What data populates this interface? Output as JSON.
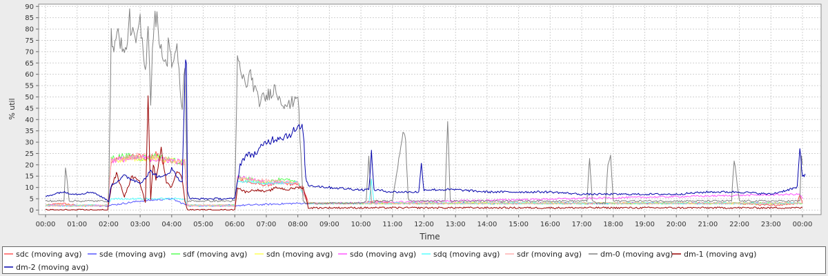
{
  "chart_data": {
    "type": "line",
    "title": "",
    "xlabel": "Time",
    "ylabel": "% util",
    "xlim": [
      "00:00",
      "24:20"
    ],
    "ylim": [
      -2,
      91
    ],
    "grid": true,
    "legend_position": "bottom",
    "x_ticks": [
      "00:00",
      "01:00",
      "02:00",
      "03:00",
      "04:00",
      "05:00",
      "06:00",
      "07:00",
      "08:00",
      "09:00",
      "10:00",
      "11:00",
      "12:00",
      "13:00",
      "14:00",
      "15:00",
      "16:00",
      "17:00",
      "18:00",
      "19:00",
      "20:00",
      "21:00",
      "22:00",
      "23:00",
      "00:00"
    ],
    "y_ticks": [
      0,
      5,
      10,
      15,
      20,
      25,
      30,
      35,
      40,
      45,
      50,
      55,
      60,
      65,
      70,
      75,
      80,
      85,
      90
    ],
    "series": [
      {
        "name": "sdc (moving avg)",
        "color": "#ff5555",
        "x": [
          "00:00",
          "00:30",
          "01:00",
          "01:58",
          "02:05",
          "02:30",
          "03:00",
          "03:15",
          "03:30",
          "03:45",
          "04:00",
          "04:15",
          "04:25",
          "04:30",
          "05:00",
          "06:00",
          "06:05",
          "06:30",
          "07:00",
          "07:30",
          "08:00",
          "08:10",
          "08:20",
          "09:00",
          "10:00",
          "10:20",
          "11:00",
          "12:00",
          "13:00",
          "14:00",
          "15:00",
          "16:00",
          "17:00",
          "18:00",
          "19:00",
          "20:00",
          "21:00",
          "22:00",
          "23:00",
          "23:50",
          "23:55",
          "24:00"
        ],
        "values": [
          2,
          3,
          2,
          2,
          22,
          23,
          24,
          22,
          25,
          21,
          22,
          20,
          22,
          2,
          2,
          2,
          14,
          12,
          11,
          12,
          11,
          10,
          3,
          3,
          3,
          4,
          3,
          3,
          3,
          3,
          3,
          3,
          3,
          3,
          3,
          3,
          3,
          3,
          2,
          3,
          7,
          3
        ]
      },
      {
        "name": "sde (moving avg)",
        "color": "#5555ff",
        "x": [
          "00:00",
          "01:00",
          "02:00",
          "03:00",
          "04:00",
          "04:30",
          "05:00",
          "06:00",
          "08:00",
          "08:30",
          "09:00",
          "12:00",
          "15:00",
          "18:00",
          "21:00",
          "24:00"
        ],
        "values": [
          2,
          2,
          2,
          4,
          5,
          2,
          2,
          2,
          3,
          3,
          3,
          3,
          3,
          3,
          3,
          3
        ]
      },
      {
        "name": "sdf (moving avg)",
        "color": "#55ff55",
        "x": [
          "00:00",
          "01:00",
          "01:58",
          "02:05",
          "02:30",
          "03:00",
          "03:30",
          "04:00",
          "04:25",
          "04:30",
          "05:00",
          "06:00",
          "06:05",
          "07:00",
          "07:30",
          "08:00",
          "08:20",
          "09:00",
          "12:00",
          "15:00",
          "18:00",
          "21:00",
          "24:00"
        ],
        "values": [
          2,
          2,
          2,
          23,
          24,
          23,
          24,
          22,
          21,
          2,
          2,
          2,
          15,
          12,
          14,
          12,
          3,
          3,
          3,
          3,
          3,
          3,
          3
        ]
      },
      {
        "name": "sdn (moving avg)",
        "color": "#ffff55",
        "x": [
          "00:00",
          "01:58",
          "02:05",
          "03:00",
          "04:00",
          "04:25",
          "04:30",
          "06:00",
          "06:05",
          "07:00",
          "08:00",
          "08:20",
          "09:00",
          "24:00"
        ],
        "values": [
          2,
          2,
          22,
          23,
          22,
          21,
          2,
          2,
          14,
          12,
          12,
          3,
          3,
          3
        ]
      },
      {
        "name": "sdo (moving avg)",
        "color": "#ff55ff",
        "x": [
          "00:00",
          "01:58",
          "02:05",
          "03:00",
          "04:00",
          "04:25",
          "04:30",
          "06:00",
          "06:05",
          "07:00",
          "08:00",
          "08:20",
          "09:00",
          "23:55",
          "24:00"
        ],
        "values": [
          2,
          2,
          22,
          23,
          22,
          21,
          2,
          2,
          15,
          12,
          12,
          3,
          3,
          7,
          5
        ]
      },
      {
        "name": "sdq (moving avg)",
        "color": "#55ffff",
        "x": [
          "00:00",
          "01:58",
          "02:05",
          "03:00",
          "04:00",
          "04:25",
          "04:30",
          "06:00",
          "06:05",
          "07:00",
          "08:00",
          "08:20",
          "09:00",
          "10:15",
          "10:20",
          "10:25",
          "24:00"
        ],
        "values": [
          2,
          2,
          5,
          5,
          5,
          5,
          2,
          2,
          13,
          12,
          12,
          3,
          3,
          3,
          13,
          3,
          3
        ]
      },
      {
        "name": "sdr (moving avg)",
        "color": "#ffafaf",
        "x": [
          "00:00",
          "01:58",
          "02:05",
          "03:00",
          "04:00",
          "04:25",
          "04:30",
          "06:00",
          "06:05",
          "07:00",
          "08:00",
          "08:20",
          "09:00",
          "24:00"
        ],
        "values": [
          2,
          2,
          22,
          24,
          22,
          21,
          2,
          2,
          14,
          13,
          12,
          3,
          3,
          3
        ]
      },
      {
        "name": "dm-0 (moving avg)",
        "color": "#808080",
        "x": [
          "00:00",
          "00:35",
          "00:38",
          "00:40",
          "00:45",
          "00:50",
          "01:00",
          "02:00",
          "02:05",
          "02:10",
          "02:20",
          "02:30",
          "02:40",
          "02:50",
          "03:00",
          "03:10",
          "03:15",
          "03:20",
          "03:25",
          "03:30",
          "03:40",
          "03:50",
          "03:55",
          "04:00",
          "04:10",
          "04:20",
          "04:25",
          "04:30",
          "05:00",
          "06:00",
          "06:05",
          "06:20",
          "06:30",
          "06:45",
          "07:00",
          "07:15",
          "07:30",
          "07:45",
          "08:00",
          "08:10",
          "08:15",
          "08:20",
          "09:00",
          "10:00",
          "10:10",
          "10:15",
          "10:20",
          "10:30",
          "11:00",
          "11:20",
          "11:25",
          "11:30",
          "11:35",
          "12:00",
          "12:40",
          "12:45",
          "12:50",
          "13:00",
          "14:00",
          "15:00",
          "16:00",
          "17:00",
          "17:10",
          "17:15",
          "17:20",
          "17:30",
          "17:45",
          "17:50",
          "17:55",
          "18:00",
          "18:10",
          "19:00",
          "20:00",
          "21:00",
          "21:40",
          "21:45",
          "21:50",
          "22:00",
          "23:00",
          "23:55",
          "23:58",
          "24:00"
        ],
        "values": [
          4,
          4,
          18,
          16,
          4,
          4,
          4,
          4,
          76,
          74,
          78,
          67,
          84,
          73,
          82,
          60,
          85,
          48,
          80,
          86,
          72,
          62,
          78,
          64,
          70,
          44,
          66,
          4,
          4,
          4,
          66,
          55,
          60,
          48,
          50,
          54,
          48,
          46,
          52,
          4,
          3,
          3,
          3,
          3,
          4,
          24,
          3,
          4,
          4,
          35,
          30,
          5,
          4,
          4,
          4,
          40,
          4,
          4,
          4,
          4,
          4,
          4,
          4,
          24,
          4,
          3,
          3,
          20,
          24,
          4,
          4,
          4,
          4,
          4,
          4,
          4,
          22,
          4,
          4,
          4,
          25,
          20
        ]
      },
      {
        "name": "dm-1 (moving avg)",
        "color": "#990000",
        "x": [
          "00:00",
          "01:00",
          "01:58",
          "02:05",
          "02:15",
          "02:30",
          "02:45",
          "03:00",
          "03:10",
          "03:15",
          "03:20",
          "03:25",
          "03:30",
          "03:40",
          "03:50",
          "04:00",
          "04:10",
          "04:20",
          "04:25",
          "04:30",
          "05:00",
          "06:00",
          "06:05",
          "06:20",
          "06:40",
          "07:00",
          "07:20",
          "07:40",
          "08:00",
          "08:10",
          "08:20",
          "09:00",
          "10:00",
          "11:00",
          "12:00",
          "13:00",
          "14:00",
          "15:00",
          "16:00",
          "17:00",
          "18:00",
          "19:00",
          "20:00",
          "21:00",
          "22:00",
          "23:00",
          "24:00"
        ],
        "values": [
          0,
          0,
          0,
          10,
          16,
          6,
          15,
          12,
          3,
          50,
          5,
          20,
          14,
          28,
          12,
          10,
          18,
          14,
          4,
          0,
          0,
          0,
          10,
          8,
          9,
          8,
          10,
          9,
          10,
          10,
          1,
          1,
          1,
          1,
          1,
          1,
          1,
          1,
          1,
          1,
          1,
          1,
          1,
          1,
          1,
          1,
          1
        ]
      },
      {
        "name": "dm-2 (moving avg)",
        "color": "#0000aa",
        "x": [
          "00:00",
          "00:30",
          "01:00",
          "01:30",
          "02:00",
          "02:05",
          "02:30",
          "03:00",
          "03:20",
          "03:40",
          "04:00",
          "04:10",
          "04:20",
          "04:25",
          "04:28",
          "04:30",
          "04:35",
          "05:00",
          "06:00",
          "06:10",
          "06:20",
          "06:40",
          "07:00",
          "07:20",
          "07:40",
          "08:00",
          "08:10",
          "08:15",
          "08:20",
          "09:00",
          "10:00",
          "10:15",
          "10:20",
          "10:25",
          "11:00",
          "11:50",
          "11:55",
          "12:00",
          "13:00",
          "14:00",
          "15:00",
          "16:00",
          "17:00",
          "18:00",
          "19:00",
          "20:00",
          "21:00",
          "22:00",
          "23:00",
          "23:50",
          "23:55",
          "24:00",
          "24:05"
        ],
        "values": [
          6,
          8,
          7,
          8,
          4,
          11,
          15,
          12,
          17,
          14,
          18,
          15,
          12,
          60,
          67,
          8,
          5,
          5,
          5,
          20,
          24,
          25,
          30,
          32,
          33,
          36,
          36,
          14,
          11,
          10,
          9,
          9,
          25,
          9,
          8,
          8,
          20,
          9,
          9,
          8,
          8,
          8,
          7,
          7,
          7,
          7,
          8,
          8,
          7,
          10,
          27,
          15,
          16
        ]
      }
    ]
  }
}
